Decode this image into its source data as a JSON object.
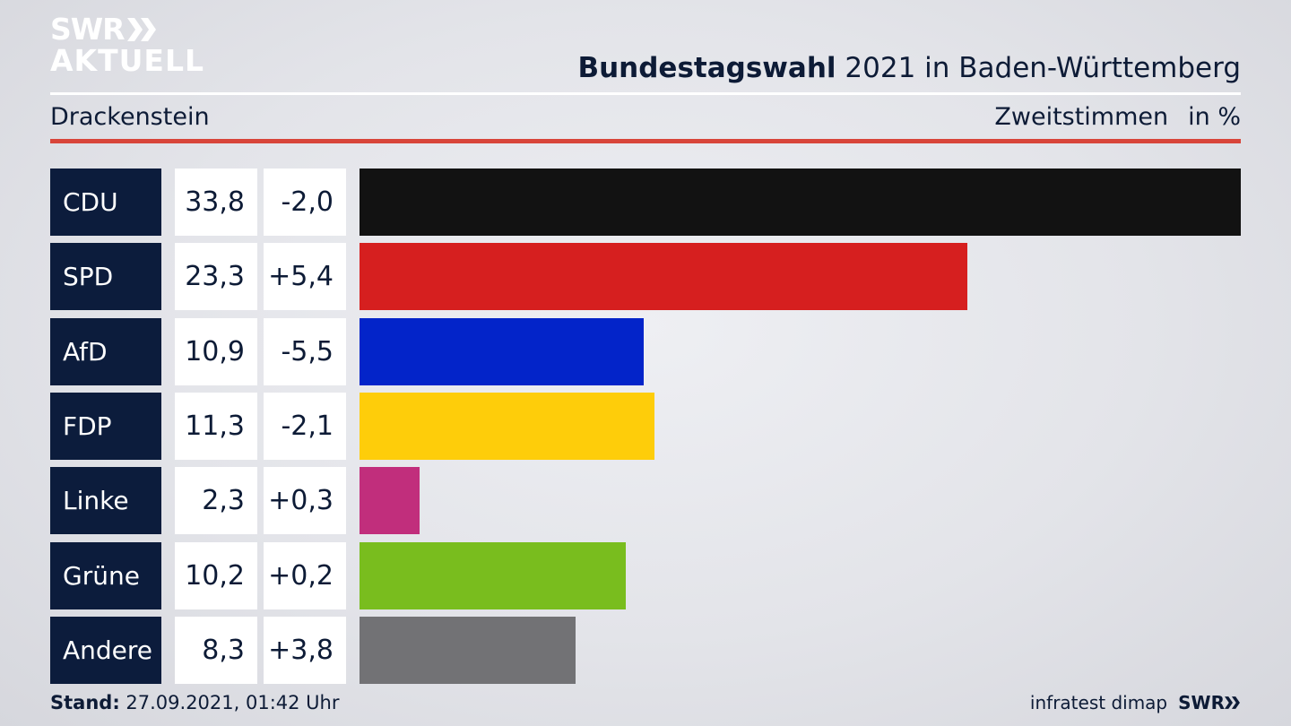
{
  "brand": {
    "line1": "SWR",
    "line2": "AKTUELL",
    "footer_logo": "SWR"
  },
  "header": {
    "title_bold": "Bundestagswahl",
    "title_rest": " 2021 in Baden-Württemberg",
    "location": "Drackenstein",
    "metric": "Zweitstimmen",
    "unit": "in %"
  },
  "footer": {
    "stand_label": "Stand:",
    "stand_value": " 27.09.2021, 01:42 Uhr",
    "source": "infratest dimap"
  },
  "chart_data": {
    "type": "bar",
    "orientation": "horizontal",
    "categories": [
      "CDU",
      "SPD",
      "AfD",
      "FDP",
      "Linke",
      "Grüne",
      "Andere"
    ],
    "values": [
      33.8,
      23.3,
      10.9,
      11.3,
      2.3,
      10.2,
      8.3
    ],
    "value_labels": [
      "33,8",
      "23,3",
      "10,9",
      "11,3",
      "2,3",
      "10,2",
      "8,3"
    ],
    "change_labels": [
      "-2,0",
      "+5,4",
      "-5,5",
      "-2,1",
      "+0,3",
      "+0,2",
      "+3,8"
    ],
    "changes": [
      -2.0,
      5.4,
      -5.5,
      -2.1,
      0.3,
      0.2,
      3.8
    ],
    "colors": [
      "#121212",
      "#d61f1f",
      "#0324c9",
      "#fecd0a",
      "#c12e7c",
      "#79bd1e",
      "#727275"
    ],
    "xlim": [
      0,
      33.8
    ]
  }
}
